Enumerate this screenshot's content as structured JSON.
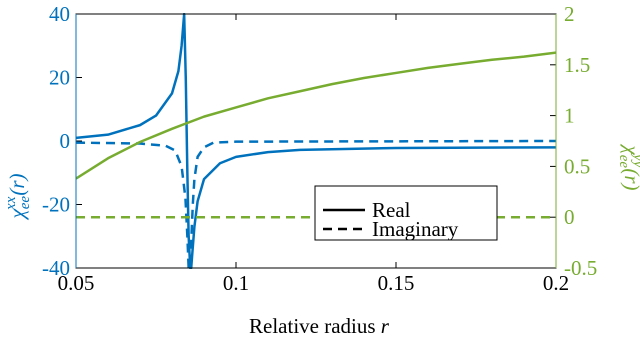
{
  "chart_data": {
    "type": "line",
    "xlabel": "Relative radius",
    "xlabel_symbol": "r",
    "ylabel_left": "χ_ee^xx(r)",
    "ylabel_right": "χ_ee^yy(r)",
    "xlim": [
      0.05,
      0.2
    ],
    "ylim_left": [
      -40,
      40
    ],
    "ylim_right": [
      -0.5,
      2
    ],
    "xticks": [
      "0.05",
      "0.1",
      "0.15",
      "0.2"
    ],
    "yticks_left": [
      "40",
      "20",
      "0",
      "-20",
      "-40"
    ],
    "yticks_right": [
      "2",
      "1.5",
      "1",
      "0.5",
      "0",
      "-0.5"
    ],
    "grid": false,
    "legend_position": "right",
    "legend": [
      {
        "label": "Real",
        "style": "solid"
      },
      {
        "label": "Imaginary",
        "style": "dashed"
      }
    ],
    "colors": {
      "left": "#0072BD",
      "right": "#77AC30"
    },
    "series": [
      {
        "axis": "left",
        "style": "solid",
        "label_ref": "Real",
        "x": [
          0.05,
          0.06,
          0.07,
          0.075,
          0.08,
          0.082,
          0.083,
          0.0838,
          0.0843,
          0.0848,
          0.0852,
          0.0857,
          0.086,
          0.0863,
          0.087,
          0.088,
          0.09,
          0.095,
          0.1,
          0.11,
          0.12,
          0.15,
          0.2
        ],
        "y": [
          1,
          2,
          5,
          8,
          15,
          22,
          30,
          40,
          20,
          -10,
          -30,
          -40,
          -40,
          -36,
          -27,
          -19,
          -12,
          -7,
          -5,
          -3.5,
          -2.8,
          -2.2,
          -2
        ]
      },
      {
        "axis": "left",
        "style": "dashed",
        "label_ref": "Imaginary",
        "x": [
          0.05,
          0.07,
          0.078,
          0.081,
          0.083,
          0.0842,
          0.0848,
          0.0852,
          0.0856,
          0.086,
          0.0865,
          0.087,
          0.088,
          0.09,
          0.093,
          0.1,
          0.15,
          0.2
        ],
        "y": [
          -0.5,
          -0.8,
          -1.5,
          -3,
          -8,
          -18,
          -30,
          -40,
          -40,
          -32,
          -20,
          -12,
          -5,
          -2,
          -0.5,
          -0.2,
          -0.1,
          0
        ]
      },
      {
        "axis": "right",
        "style": "solid",
        "x": [
          0.05,
          0.06,
          0.07,
          0.08,
          0.09,
          0.1,
          0.11,
          0.12,
          0.13,
          0.14,
          0.15,
          0.16,
          0.17,
          0.18,
          0.19,
          0.2
        ],
        "y": [
          0.38,
          0.58,
          0.74,
          0.87,
          0.99,
          1.08,
          1.17,
          1.24,
          1.31,
          1.37,
          1.42,
          1.47,
          1.51,
          1.55,
          1.58,
          1.62
        ]
      },
      {
        "axis": "right",
        "style": "dashed",
        "x": [
          0.05,
          0.2
        ],
        "y": [
          0,
          0
        ]
      }
    ]
  }
}
